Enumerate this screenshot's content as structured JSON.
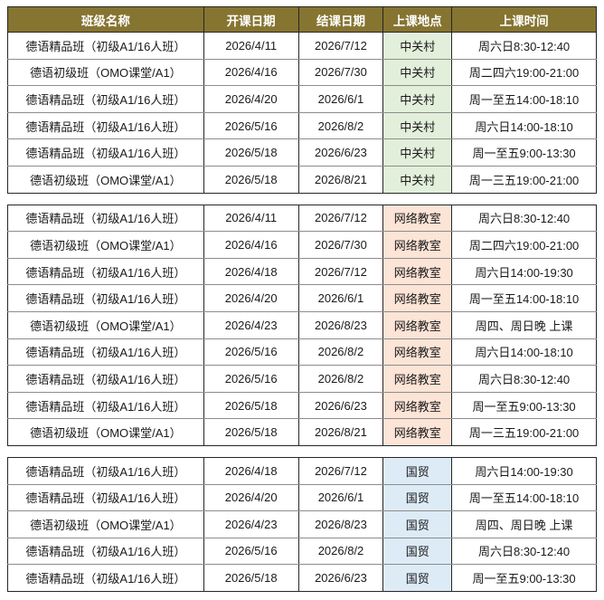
{
  "page": {
    "background": "#FFFFFF"
  },
  "colors": {
    "header_bg": "#867431",
    "header_text": "#FFFFFF",
    "border_dark": "#262626",
    "border_light": "#8C8C8C",
    "text": "#1A1A1A"
  },
  "table": {
    "headers": [
      "班级名称",
      "开课日期",
      "结课日期",
      "上课地点",
      "上课时间"
    ],
    "sections": [
      {
        "location": "中关村",
        "location_bg": "#E2EFDA",
        "rows": [
          [
            "德语精品班（初级A1/16人班）",
            "2026/4/11",
            "2026/7/12",
            "中关村",
            "周六日8:30-12:40"
          ],
          [
            "德语初级班（OMO课堂/A1）",
            "2026/4/16",
            "2026/7/30",
            "中关村",
            "周二四六19:00-21:00"
          ],
          [
            "德语精品班（初级A1/16人班）",
            "2026/4/20",
            "2026/6/1",
            "中关村",
            "周一至五14:00-18:10"
          ],
          [
            "德语精品班（初级A1/16人班）",
            "2026/5/16",
            "2026/8/2",
            "中关村",
            "周六日14:00-18:10"
          ],
          [
            "德语精品班（初级A1/16人班）",
            "2026/5/18",
            "2026/6/23",
            "中关村",
            "周一至五9:00-13:30"
          ],
          [
            "德语初级班（OMO课堂/A1）",
            "2026/5/18",
            "2026/8/21",
            "中关村",
            "周一三五19:00-21:00"
          ]
        ]
      },
      {
        "location": "网络教室",
        "location_bg": "#FCE4D6",
        "rows": [
          [
            "德语精品班（初级A1/16人班）",
            "2026/4/11",
            "2026/7/12",
            "网络教室",
            "周六日8:30-12:40"
          ],
          [
            "德语初级班（OMO课堂/A1）",
            "2026/4/16",
            "2026/7/30",
            "网络教室",
            "周二四六19:00-21:00"
          ],
          [
            "德语精品班（初级A1/16人班）",
            "2026/4/18",
            "2026/7/12",
            "网络教室",
            "周六日14:00-19:30"
          ],
          [
            "德语精品班（初级A1/16人班）",
            "2026/4/20",
            "2026/6/1",
            "网络教室",
            "周一至五14:00-18:10"
          ],
          [
            "德语初级班（OMO课堂/A1）",
            "2026/4/23",
            "2026/8/23",
            "网络教室",
            "周四、周日晚 上课"
          ],
          [
            "德语精品班（初级A1/16人班）",
            "2026/5/16",
            "2026/8/2",
            "网络教室",
            "周六日14:00-18:10"
          ],
          [
            "德语精品班（初级A1/16人班）",
            "2026/5/16",
            "2026/8/2",
            "网络教室",
            "周六日8:30-12:40"
          ],
          [
            "德语精品班（初级A1/16人班）",
            "2026/5/18",
            "2026/6/23",
            "网络教室",
            "周一至五9:00-13:30"
          ],
          [
            "德语初级班（OMO课堂/A1）",
            "2026/5/18",
            "2026/8/21",
            "网络教室",
            "周一三五19:00-21:00"
          ]
        ]
      },
      {
        "location": "国贸",
        "location_bg": "#DDEBF7",
        "rows": [
          [
            "德语精品班（初级A1/16人班）",
            "2026/4/18",
            "2026/7/12",
            "国贸",
            "周六日14:00-19:30"
          ],
          [
            "德语精品班（初级A1/16人班）",
            "2026/4/20",
            "2026/6/1",
            "国贸",
            "周一至五14:00-18:10"
          ],
          [
            "德语初级班（OMO课堂/A1）",
            "2026/4/23",
            "2026/8/23",
            "国贸",
            "周四、周日晚 上课"
          ],
          [
            "德语精品班（初级A1/16人班）",
            "2026/5/16",
            "2026/8/2",
            "国贸",
            "周六日8:30-12:40"
          ],
          [
            "德语精品班（初级A1/16人班）",
            "2026/5/18",
            "2026/6/23",
            "国贸",
            "周一至五9:00-13:30"
          ]
        ]
      }
    ]
  }
}
